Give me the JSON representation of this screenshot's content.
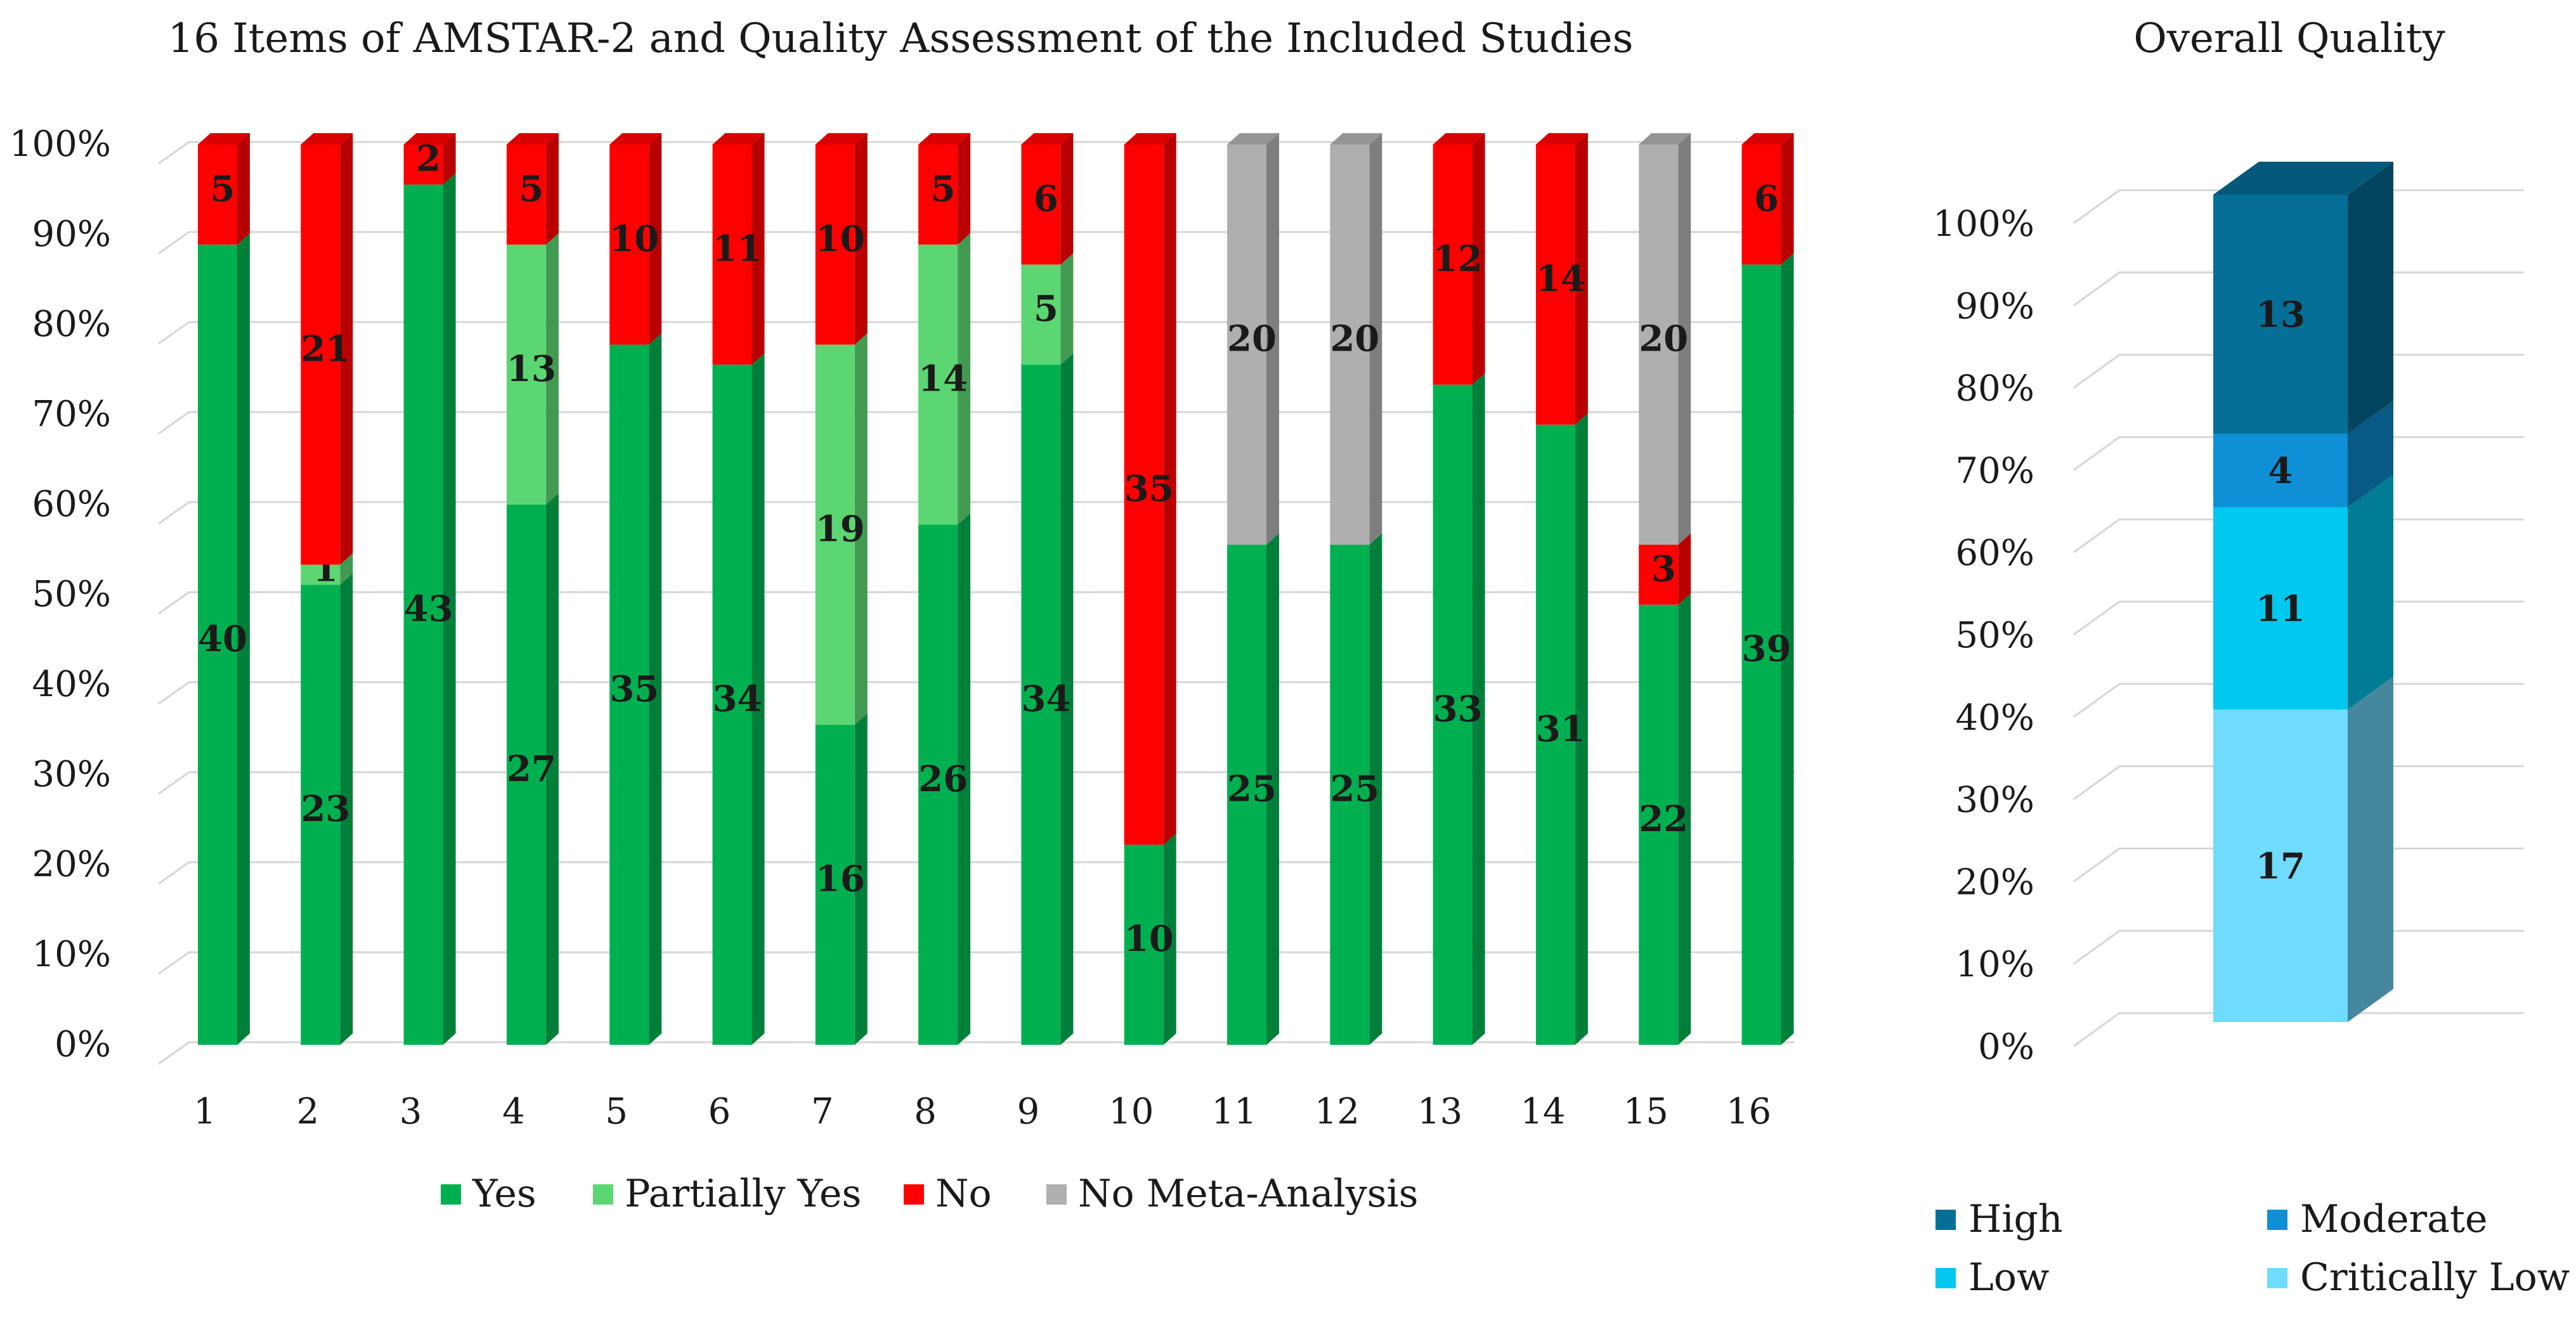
{
  "chart_data": [
    {
      "type": "bar",
      "stacked": true,
      "percent": true,
      "title": "16 Items of AMSTAR-2 and Quality Assessment of the Included Studies",
      "xlabel": "",
      "ylabel": "",
      "ylim": [
        0,
        100
      ],
      "y_ticks": [
        "0%",
        "10%",
        "20%",
        "30%",
        "40%",
        "50%",
        "60%",
        "70%",
        "80%",
        "90%",
        "100%"
      ],
      "categories": [
        "1",
        "2",
        "3",
        "4",
        "5",
        "6",
        "7",
        "8",
        "9",
        "10",
        "11",
        "12",
        "13",
        "14",
        "15",
        "16"
      ],
      "legend_position": "bottom",
      "series": [
        {
          "name": "Yes",
          "color": "#00b050",
          "values": [
            40,
            23,
            43,
            27,
            35,
            34,
            16,
            26,
            34,
            10,
            25,
            25,
            33,
            31,
            22,
            39
          ]
        },
        {
          "name": "Partially Yes",
          "color": "#5cd672",
          "values": [
            0,
            1,
            0,
            13,
            0,
            0,
            19,
            14,
            5,
            0,
            0,
            0,
            0,
            0,
            0,
            0
          ]
        },
        {
          "name": "No",
          "color": "#ff0000",
          "values": [
            5,
            21,
            2,
            5,
            10,
            11,
            10,
            5,
            6,
            35,
            0,
            0,
            12,
            14,
            3,
            6
          ]
        },
        {
          "name": "No Meta-Analysis",
          "color": "#afafaf",
          "values": [
            0,
            0,
            0,
            0,
            0,
            0,
            0,
            0,
            0,
            0,
            20,
            20,
            0,
            0,
            20,
            0
          ]
        }
      ]
    },
    {
      "type": "bar",
      "stacked": true,
      "percent": true,
      "title": "Overall Quality",
      "xlabel": "",
      "ylabel": "",
      "ylim": [
        0,
        100
      ],
      "y_ticks": [
        "0%",
        "10%",
        "20%",
        "30%",
        "40%",
        "50%",
        "60%",
        "70%",
        "80%",
        "90%",
        "100%"
      ],
      "categories": [
        ""
      ],
      "legend_position": "bottom",
      "series": [
        {
          "name": "Critically Low",
          "color": "#6fdcff",
          "values": [
            17
          ]
        },
        {
          "name": "Low",
          "color": "#00c8ef",
          "values": [
            11
          ]
        },
        {
          "name": "Moderate",
          "color": "#0e8fd6",
          "values": [
            4
          ]
        },
        {
          "name": "High",
          "color": "#056f98",
          "values": [
            13
          ]
        }
      ],
      "legend_order": [
        "High",
        "Moderate",
        "Low",
        "Critically Low"
      ]
    }
  ]
}
